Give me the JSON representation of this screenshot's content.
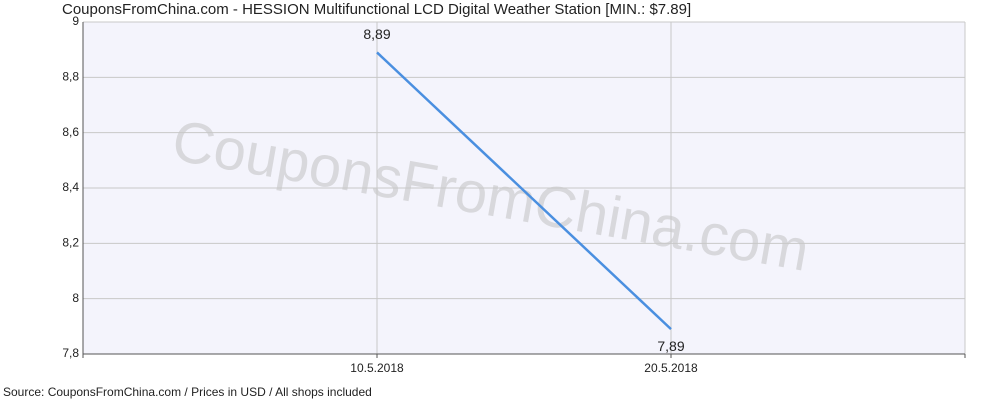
{
  "chart_data": {
    "type": "line",
    "title": "CouponsFromChina.com - HESSION Multifunctional LCD Digital Weather Station [MIN.: $7.89]",
    "watermark": "CouponsFromChina.com",
    "source": "Source: CouponsFromChina.com / Prices in USD / All shops included",
    "categories": [
      null,
      "10.5.2018",
      "20.5.2018",
      null
    ],
    "values": [
      null,
      8.89,
      7.89,
      null
    ],
    "value_labels": [
      null,
      "8,89",
      "7,89",
      null
    ],
    "color": "#4a8fe0",
    "ylim": [
      7.8,
      9
    ],
    "yticks": [
      {
        "value": 7.8,
        "label": "7,8"
      },
      8,
      {
        "value": 8.2,
        "label": "8,2"
      },
      {
        "value": 8.4,
        "label": "8,4"
      },
      {
        "value": 8.6,
        "label": "8,6"
      },
      {
        "value": 8.8,
        "label": "8,8"
      },
      9
    ],
    "grid": true
  }
}
